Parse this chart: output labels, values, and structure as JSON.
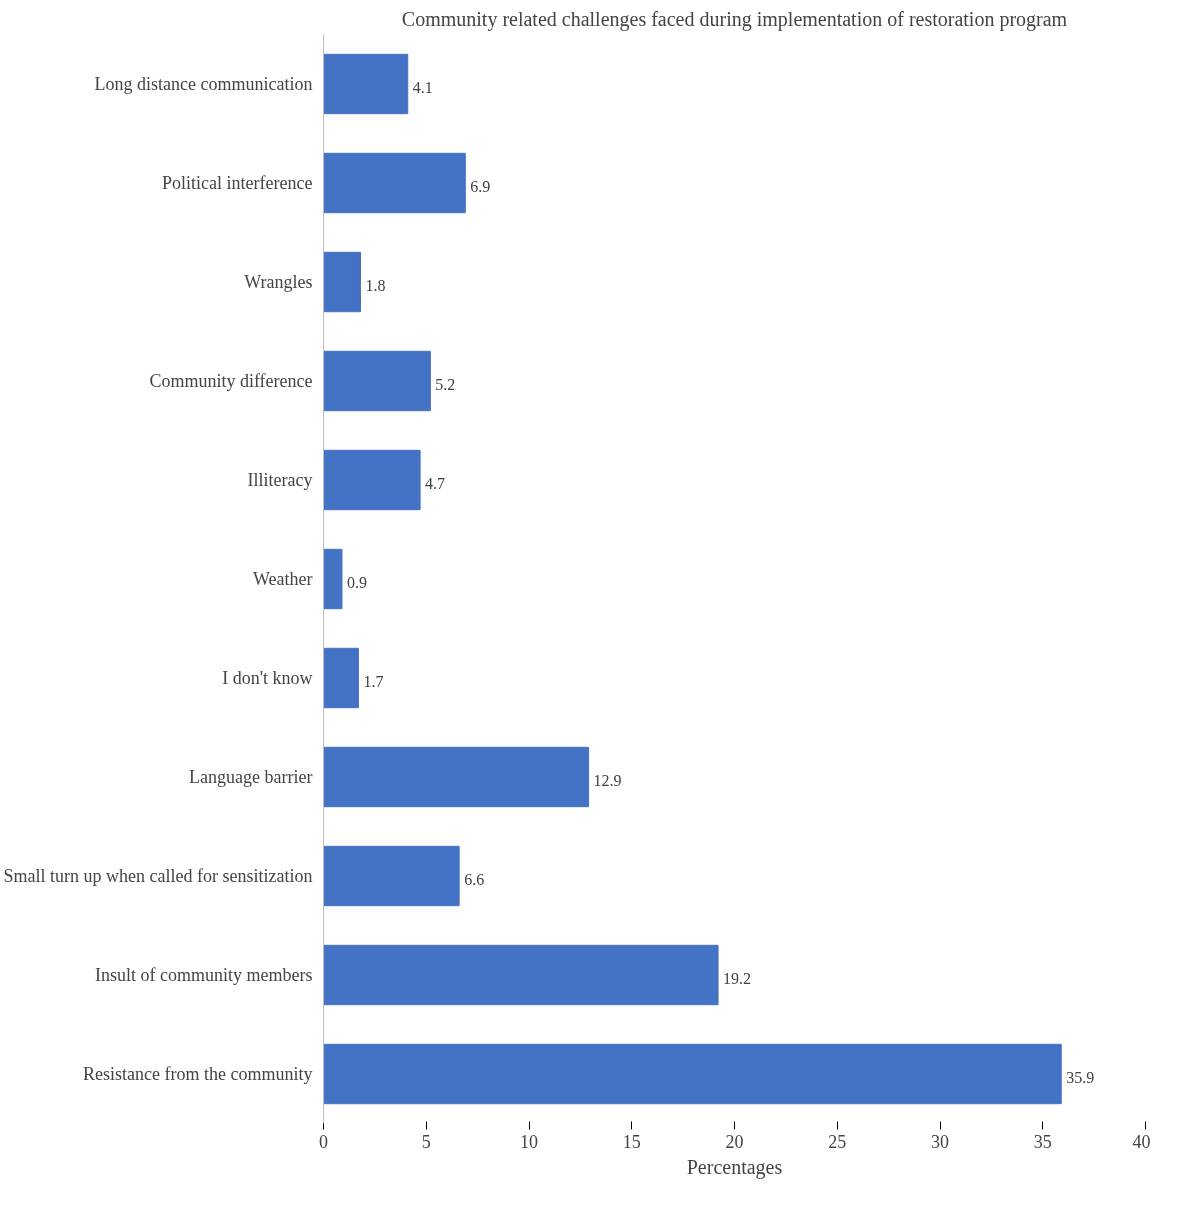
{
  "chart_data": {
    "type": "bar",
    "orientation": "horizontal",
    "title": "Community related challenges faced during implementation of restoration program",
    "xlabel": "Percentages",
    "categories": [
      "Long distance communication",
      "Political interference",
      "Wrangles",
      "Community difference",
      "Illiteracy",
      "Weather",
      "I don't know",
      "Language barrier",
      "Small turn up when called for sensitization",
      "Insult of community members",
      "Resistance from the community"
    ],
    "values": [
      4.1,
      6.9,
      1.8,
      5.2,
      4.7,
      0.9,
      1.7,
      12.9,
      6.6,
      19.2,
      35.9
    ],
    "color": "#4472c4",
    "xlim": [
      0,
      40
    ],
    "xticks": [
      0,
      5,
      10,
      15,
      20,
      25,
      30,
      35,
      40
    ],
    "grid": false,
    "data_labels": true
  }
}
